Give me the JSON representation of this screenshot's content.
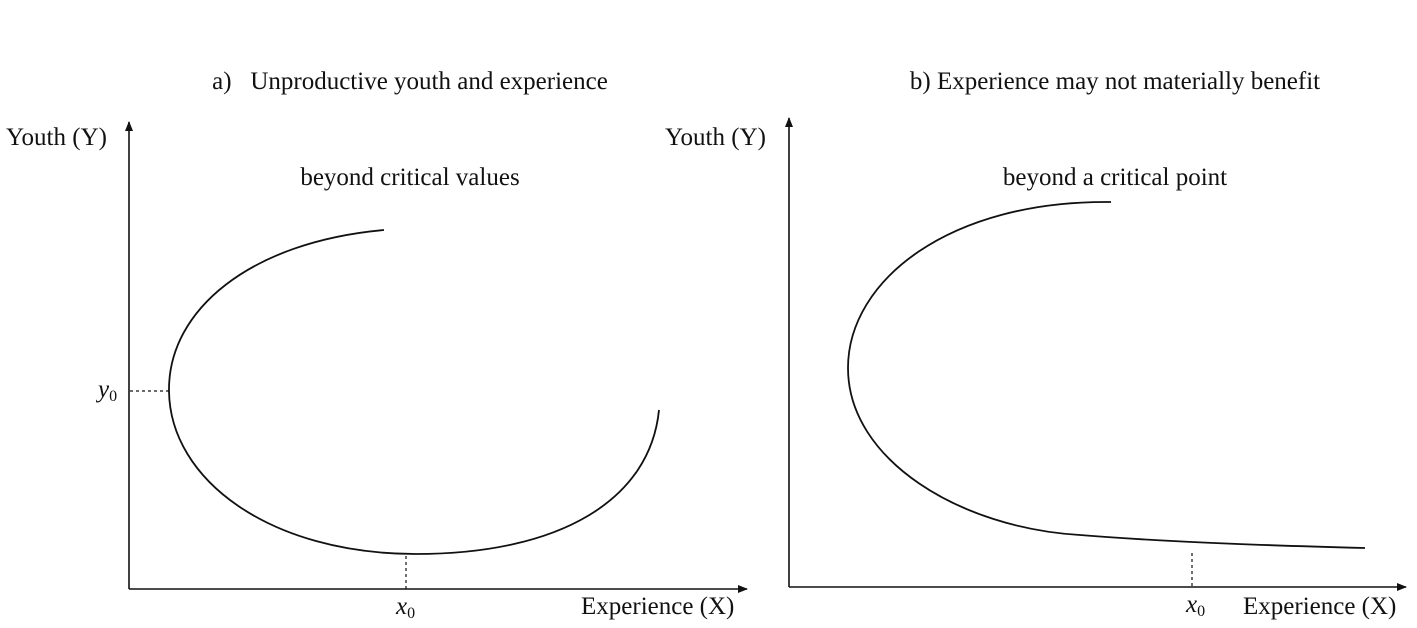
{
  "panel_a": {
    "title_line1": "a)   Unproductive youth and experience",
    "title_line2": "beyond critical values",
    "y_axis_label": "Youth (Y)",
    "x_axis_label": "Experience (X)",
    "y_marker": {
      "letter": "y",
      "sub": "0"
    },
    "x_marker": {
      "letter": "x",
      "sub": "0"
    }
  },
  "panel_b": {
    "title_line1": "b) Experience may not materially benefit",
    "title_line2": "beyond a critical point",
    "y_axis_label": "Youth (Y)",
    "x_axis_label": "Experience (X)",
    "x_marker": {
      "letter": "x",
      "sub": "0"
    }
  },
  "colors": {
    "ink": "#111111",
    "background": "#ffffff"
  }
}
